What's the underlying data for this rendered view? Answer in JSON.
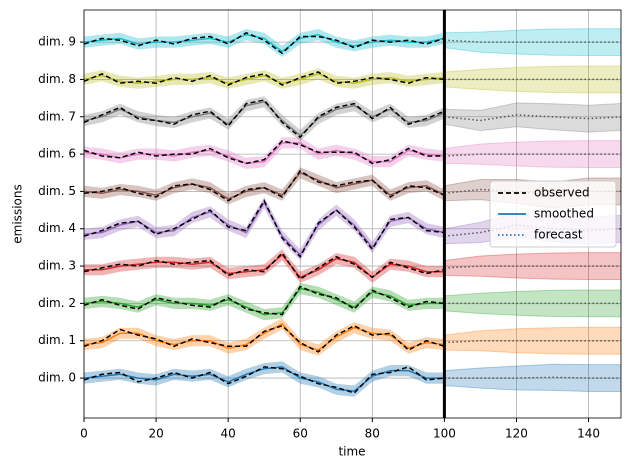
{
  "chart_data": {
    "type": "line",
    "xlabel": "time",
    "ylabel": "emissions",
    "xlim": [
      0,
      149
    ],
    "ylim": [
      -1.07,
      9.86
    ],
    "xticks": [
      0,
      20,
      40,
      60,
      80,
      100,
      120,
      140
    ],
    "yticks": [
      {
        "value": 0,
        "label": "dim. 0"
      },
      {
        "value": 1,
        "label": "dim. 1"
      },
      {
        "value": 2,
        "label": "dim. 2"
      },
      {
        "value": 3,
        "label": "dim. 3"
      },
      {
        "value": 4,
        "label": "dim. 4"
      },
      {
        "value": 5,
        "label": "dim. 5"
      },
      {
        "value": 6,
        "label": "dim. 6"
      },
      {
        "value": 7,
        "label": "dim. 7"
      },
      {
        "value": 8,
        "label": "dim. 8"
      },
      {
        "value": 9,
        "label": "dim. 9"
      }
    ],
    "grid": true,
    "split_x": 100,
    "legend_loc": "center right",
    "legend": [
      {
        "name": "observed",
        "style": "dashed",
        "color": "#000000"
      },
      {
        "name": "smoothed",
        "style": "solid",
        "color": "#1f77b4"
      },
      {
        "name": "forecast",
        "style": "dotted",
        "color": "#1f77b4"
      }
    ],
    "x": [
      0,
      5,
      10,
      15,
      20,
      25,
      30,
      35,
      40,
      45,
      50,
      55,
      60,
      65,
      70,
      75,
      80,
      85,
      90,
      95,
      100
    ],
    "x_forecast": [
      100,
      110,
      120,
      130,
      140,
      150
    ],
    "band": 0.15,
    "forecast_band": [
      0.2,
      0.27,
      0.32,
      0.35,
      0.36,
      0.36
    ],
    "dims": [
      {
        "color": "#1f77b4",
        "observed": [
          -0.05,
          0.1,
          0.15,
          -0.1,
          0.0,
          0.15,
          0.0,
          0.15,
          -0.15,
          0.05,
          0.3,
          0.25,
          0.05,
          -0.15,
          -0.25,
          -0.4,
          0.1,
          0.15,
          0.3,
          -0.05,
          0.0
        ],
        "smoothed": [
          0.0,
          0.05,
          0.1,
          0.0,
          -0.05,
          0.1,
          0.05,
          0.1,
          -0.1,
          0.1,
          0.25,
          0.3,
          0.0,
          -0.1,
          -0.3,
          -0.35,
          0.05,
          0.2,
          0.2,
          0.0,
          0.0
        ],
        "forecast": [
          0.0,
          0.0,
          0.0,
          0.02,
          0.0,
          0.0
        ]
      },
      {
        "color": "#ff7f0e",
        "observed": [
          0.85,
          1.0,
          1.3,
          1.15,
          1.05,
          0.85,
          1.05,
          0.95,
          0.85,
          0.85,
          1.25,
          1.4,
          0.95,
          0.7,
          1.15,
          1.4,
          1.15,
          1.2,
          0.75,
          1.0,
          0.85
        ],
        "smoothed": [
          0.9,
          0.95,
          1.2,
          1.2,
          1.0,
          0.9,
          1.0,
          1.0,
          0.8,
          0.9,
          1.2,
          1.45,
          0.9,
          0.75,
          1.1,
          1.35,
          1.2,
          1.15,
          0.8,
          0.95,
          0.9
        ],
        "forecast": [
          0.95,
          1.0,
          1.0,
          1.0,
          1.0,
          1.0
        ]
      },
      {
        "color": "#2ca02c",
        "observed": [
          1.95,
          2.1,
          1.95,
          1.85,
          2.15,
          2.05,
          1.95,
          1.9,
          2.15,
          1.85,
          1.75,
          1.7,
          2.45,
          2.25,
          2.15,
          1.85,
          2.35,
          2.15,
          1.9,
          2.05,
          2.0
        ],
        "smoothed": [
          2.0,
          2.05,
          2.0,
          1.9,
          2.1,
          2.0,
          2.0,
          1.95,
          2.1,
          1.9,
          1.7,
          1.75,
          2.4,
          2.3,
          2.1,
          1.9,
          2.3,
          2.2,
          1.95,
          2.0,
          2.0
        ],
        "forecast": [
          2.0,
          2.0,
          2.0,
          2.0,
          2.0,
          2.0
        ]
      },
      {
        "color": "#d62728",
        "observed": [
          2.85,
          2.95,
          3.05,
          3.0,
          3.15,
          3.05,
          3.1,
          3.15,
          2.75,
          2.9,
          2.85,
          3.35,
          2.65,
          2.95,
          3.25,
          3.05,
          2.7,
          3.1,
          2.95,
          2.8,
          2.9
        ],
        "smoothed": [
          2.9,
          2.9,
          3.0,
          3.05,
          3.1,
          3.1,
          3.05,
          3.1,
          2.8,
          2.85,
          2.9,
          3.3,
          2.7,
          2.9,
          3.2,
          3.1,
          2.7,
          3.05,
          3.0,
          2.85,
          2.85
        ],
        "forecast": [
          2.95,
          3.0,
          3.0,
          3.0,
          3.0,
          3.0
        ]
      },
      {
        "color": "#9467bd",
        "observed": [
          3.8,
          3.95,
          4.15,
          4.2,
          3.85,
          4.0,
          4.25,
          4.5,
          4.05,
          3.95,
          4.75,
          3.75,
          3.25,
          4.15,
          4.5,
          4.05,
          3.45,
          4.25,
          4.3,
          3.95,
          3.9
        ],
        "smoothed": [
          3.85,
          3.9,
          4.1,
          4.2,
          3.9,
          3.95,
          4.3,
          4.45,
          4.1,
          3.9,
          4.7,
          3.8,
          3.3,
          4.1,
          4.5,
          4.1,
          3.5,
          4.2,
          4.3,
          4.0,
          3.9
        ],
        "forecast": [
          3.8,
          3.9,
          4.1,
          4.0,
          3.95,
          4.0
        ]
      },
      {
        "color": "#8c564b",
        "observed": [
          4.95,
          5.0,
          5.1,
          4.95,
          4.85,
          5.15,
          5.2,
          5.05,
          4.75,
          5.05,
          5.1,
          4.85,
          5.55,
          5.25,
          5.15,
          5.25,
          5.3,
          4.85,
          5.15,
          5.1,
          4.9
        ],
        "smoothed": [
          5.0,
          4.95,
          5.05,
          5.0,
          4.9,
          5.1,
          5.2,
          5.1,
          4.8,
          5.0,
          5.1,
          4.9,
          5.5,
          5.3,
          5.1,
          5.2,
          5.3,
          4.9,
          5.1,
          5.15,
          4.9
        ],
        "forecast": [
          4.95,
          5.05,
          5.0,
          4.9,
          5.0,
          5.0
        ]
      },
      {
        "color": "#e377c2",
        "observed": [
          6.1,
          5.95,
          5.9,
          6.05,
          5.95,
          6.0,
          6.0,
          6.15,
          5.9,
          5.75,
          5.85,
          6.35,
          6.25,
          6.05,
          6.05,
          6.05,
          5.75,
          5.85,
          6.15,
          5.95,
          5.95
        ],
        "smoothed": [
          6.05,
          6.0,
          5.9,
          6.0,
          6.0,
          5.95,
          6.05,
          6.1,
          5.95,
          5.75,
          5.8,
          6.3,
          6.3,
          6.0,
          6.1,
          6.0,
          5.8,
          5.8,
          6.1,
          6.0,
          5.95
        ],
        "forecast": [
          5.95,
          6.0,
          6.0,
          6.0,
          6.0,
          6.0
        ]
      },
      {
        "color": "#7f7f7f",
        "observed": [
          6.85,
          7.05,
          7.25,
          6.95,
          6.9,
          6.8,
          7.05,
          7.15,
          6.75,
          7.35,
          7.45,
          6.85,
          6.45,
          7.0,
          7.25,
          7.35,
          6.95,
          7.25,
          6.8,
          6.95,
          7.15
        ],
        "smoothed": [
          6.9,
          7.0,
          7.2,
          7.0,
          6.9,
          6.85,
          7.0,
          7.1,
          6.8,
          7.3,
          7.4,
          6.9,
          6.5,
          6.95,
          7.2,
          7.3,
          7.0,
          7.2,
          6.85,
          6.9,
          7.1
        ],
        "forecast": [
          7.0,
          6.9,
          7.05,
          7.0,
          6.95,
          7.0
        ]
      },
      {
        "color": "#bcbd22",
        "observed": [
          7.95,
          8.15,
          7.9,
          7.95,
          7.9,
          8.05,
          7.95,
          8.1,
          7.85,
          8.05,
          8.15,
          7.85,
          8.05,
          8.2,
          7.9,
          7.95,
          8.05,
          8.0,
          7.9,
          8.05,
          8.0
        ],
        "smoothed": [
          8.0,
          8.1,
          7.95,
          7.9,
          7.95,
          8.0,
          8.0,
          8.05,
          7.9,
          8.0,
          8.1,
          7.9,
          8.0,
          8.15,
          7.95,
          7.9,
          8.0,
          8.05,
          7.95,
          8.0,
          8.05
        ],
        "forecast": [
          8.0,
          8.0,
          8.0,
          8.0,
          8.0,
          8.0
        ]
      },
      {
        "color": "#17becf",
        "observed": [
          8.95,
          9.1,
          9.05,
          8.9,
          9.05,
          8.95,
          9.1,
          9.15,
          8.95,
          9.25,
          9.05,
          8.7,
          9.15,
          9.15,
          9.05,
          8.85,
          9.05,
          9.0,
          9.05,
          8.95,
          9.1
        ],
        "smoothed": [
          9.0,
          9.05,
          9.1,
          8.95,
          9.0,
          9.0,
          9.05,
          9.1,
          9.0,
          9.2,
          9.1,
          8.75,
          9.1,
          9.2,
          9.0,
          8.9,
          9.0,
          9.05,
          9.0,
          9.0,
          9.1
        ],
        "forecast": [
          9.05,
          9.0,
          9.0,
          9.0,
          9.0,
          9.0
        ]
      }
    ]
  }
}
